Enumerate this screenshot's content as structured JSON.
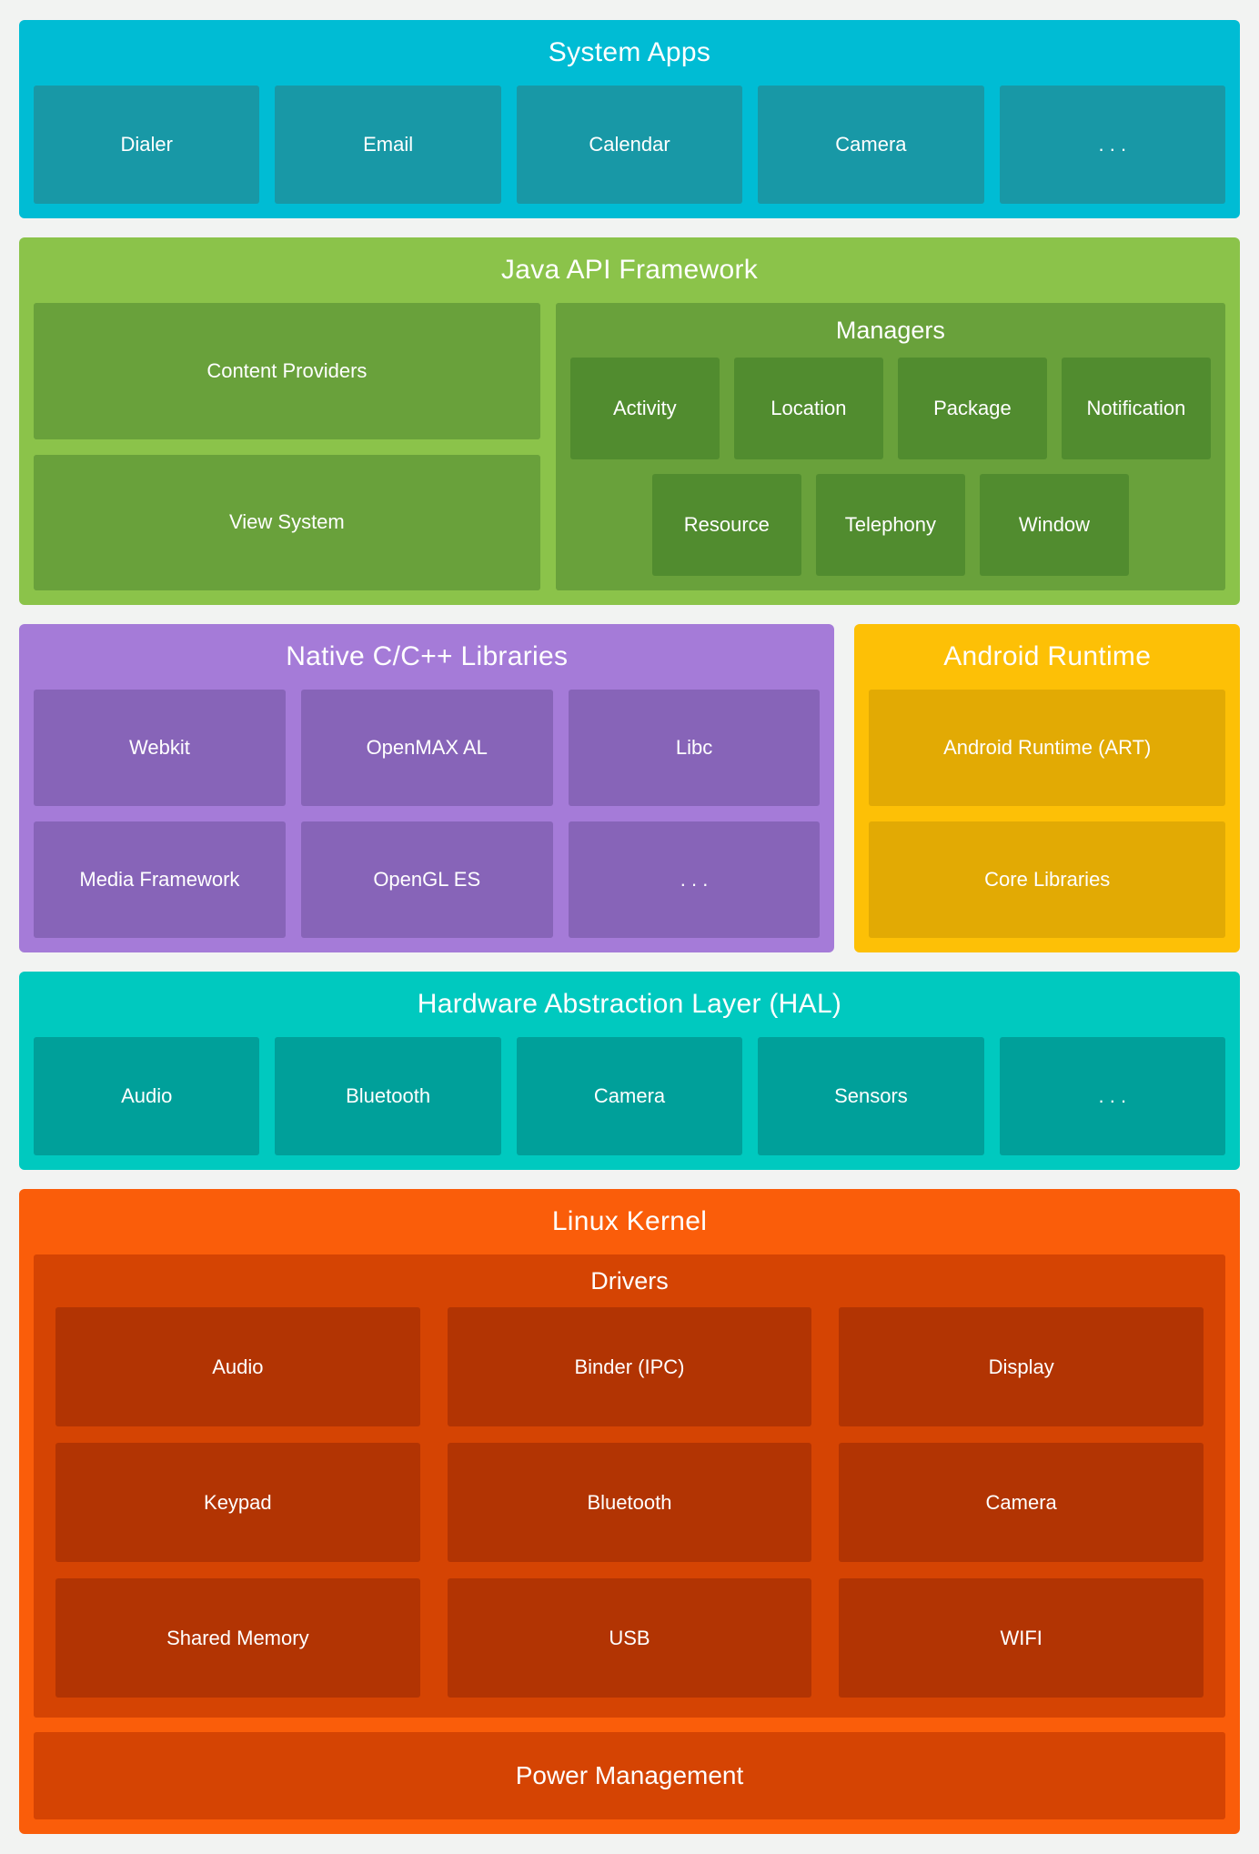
{
  "colors": {
    "page_bg": "#F2F3F2",
    "text": "#FFFFFF",
    "system_apps_bg": "#00BCD4",
    "system_apps_tile": "#1898A6",
    "java_bg": "#8BC34A",
    "java_tile": "#69A13B",
    "java_subtile": "#518C2F",
    "native_bg": "#A57BD8",
    "native_tile": "#8764B8",
    "runtime_bg": "#FDC006",
    "runtime_tile": "#E2AA04",
    "hal_bg": "#00C9BF",
    "hal_tile": "#00A09A",
    "kernel_bg": "#FA5D0A",
    "kernel_mid": "#D54403",
    "kernel_tile": "#B23403"
  },
  "system_apps": {
    "title": "System Apps",
    "tiles": [
      "Dialer",
      "Email",
      "Calendar",
      "Camera",
      ". . ."
    ]
  },
  "java_api": {
    "title": "Java API Framework",
    "left_tiles": [
      "Content Providers",
      "View System"
    ],
    "managers": {
      "title": "Managers",
      "row1": [
        "Activity",
        "Location",
        "Package",
        "Notification"
      ],
      "row2": [
        "Resource",
        "Telephony",
        "Window"
      ]
    }
  },
  "native_libs": {
    "title": "Native C/C++ Libraries",
    "tiles": [
      "Webkit",
      "OpenMAX AL",
      "Libc",
      "Media Framework",
      "OpenGL ES",
      ". . ."
    ]
  },
  "android_runtime": {
    "title": "Android Runtime",
    "tiles": [
      "Android Runtime (ART)",
      "Core Libraries"
    ]
  },
  "hal": {
    "title": "Hardware Abstraction Layer (HAL)",
    "tiles": [
      "Audio",
      "Bluetooth",
      "Camera",
      "Sensors",
      ". . ."
    ]
  },
  "linux_kernel": {
    "title": "Linux Kernel",
    "drivers": {
      "title": "Drivers",
      "tiles": [
        "Audio",
        "Binder (IPC)",
        "Display",
        "Keypad",
        "Bluetooth",
        "Camera",
        "Shared Memory",
        "USB",
        "WIFI"
      ]
    },
    "power_label": "Power Management"
  }
}
